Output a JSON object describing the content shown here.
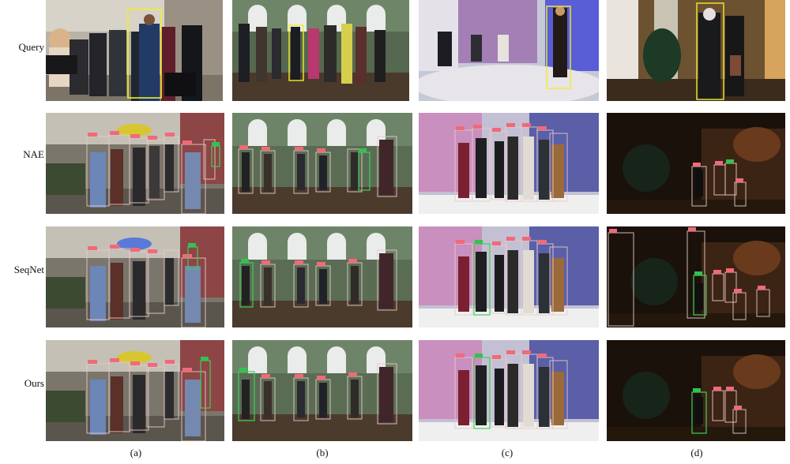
{
  "row_labels": [
    "Query",
    "NAE",
    "SeqNet",
    "Ours"
  ],
  "column_labels": [
    "(a)",
    "(b)",
    "(c)",
    "(d)"
  ],
  "colors": {
    "query_box": "#f2ee2a",
    "detection_box": "#e8c9c9",
    "match_box": "#3fcf5a",
    "score_tag": "#f06a78",
    "match_tag": "#33c24f"
  }
}
